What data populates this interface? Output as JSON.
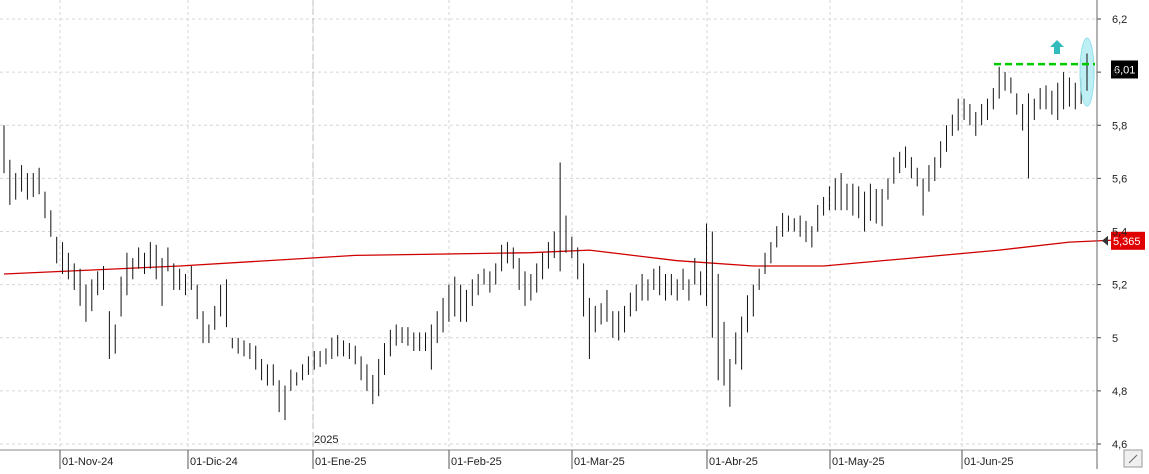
{
  "chart_data": {
    "type": "ohlc",
    "title": "",
    "xlabel": "",
    "ylabel": "",
    "ylim": [
      4.6,
      6.2
    ],
    "grid": true,
    "y_ticks": [
      "4,6",
      "4,8",
      "5",
      "5,2",
      "5,4",
      "5,6",
      "5,8",
      "6",
      "6,2"
    ],
    "y_tick_values": [
      4.6,
      4.8,
      5.0,
      5.2,
      5.4,
      5.6,
      5.8,
      6.0,
      6.2
    ],
    "x_ticks": [
      "01-Nov-24",
      "01-Dic-24",
      "01-Ene-25",
      "01-Feb-25",
      "01-Mar-25",
      "01-Abr-25",
      "01-May-25",
      "01-Jun-25"
    ],
    "year_marker": "2025",
    "colors": {
      "bars": "#111111",
      "moving_average": "#d00000",
      "resistance": "#00cc00",
      "arrow": "#33bbbb",
      "highlight": "#b8eef5",
      "price_label_bg": "#000000",
      "ma_label_bg": "#e00000"
    },
    "last_price_label": "6,01",
    "moving_average_label": "5,365",
    "resistance_level": 6.03,
    "price_bars": [
      {
        "h": 5.8,
        "l": 5.62
      },
      {
        "h": 5.67,
        "l": 5.5
      },
      {
        "h": 5.62,
        "l": 5.52
      },
      {
        "h": 5.65,
        "l": 5.55
      },
      {
        "h": 5.62,
        "l": 5.52
      },
      {
        "h": 5.62,
        "l": 5.53
      },
      {
        "h": 5.64,
        "l": 5.54
      },
      {
        "h": 5.55,
        "l": 5.45
      },
      {
        "h": 5.48,
        "l": 5.38
      },
      {
        "h": 5.38,
        "l": 5.28
      },
      {
        "h": 5.36,
        "l": 5.24
      },
      {
        "h": 5.32,
        "l": 5.22
      },
      {
        "h": 5.28,
        "l": 5.18
      },
      {
        "h": 5.26,
        "l": 5.12
      },
      {
        "h": 5.2,
        "l": 5.06
      },
      {
        "h": 5.22,
        "l": 5.1
      },
      {
        "h": 5.25,
        "l": 5.16
      },
      {
        "h": 5.27,
        "l": 5.18
      },
      {
        "h": 5.1,
        "l": 4.92
      },
      {
        "h": 5.05,
        "l": 4.94
      },
      {
        "h": 5.23,
        "l": 5.08
      },
      {
        "h": 5.32,
        "l": 5.16
      },
      {
        "h": 5.3,
        "l": 5.22
      },
      {
        "h": 5.34,
        "l": 5.26
      },
      {
        "h": 5.32,
        "l": 5.24
      },
      {
        "h": 5.36,
        "l": 5.26
      },
      {
        "h": 5.35,
        "l": 5.22
      },
      {
        "h": 5.3,
        "l": 5.12
      },
      {
        "h": 5.34,
        "l": 5.25
      },
      {
        "h": 5.28,
        "l": 5.18
      },
      {
        "h": 5.26,
        "l": 5.18
      },
      {
        "h": 5.24,
        "l": 5.16
      },
      {
        "h": 5.27,
        "l": 5.18
      },
      {
        "h": 5.2,
        "l": 5.07
      },
      {
        "h": 5.1,
        "l": 4.98
      },
      {
        "h": 5.05,
        "l": 4.98
      },
      {
        "h": 5.12,
        "l": 5.03
      },
      {
        "h": 5.2,
        "l": 5.08
      },
      {
        "h": 5.22,
        "l": 5.04
      },
      {
        "h": 5.0,
        "l": 4.96
      },
      {
        "h": 5.0,
        "l": 4.94
      },
      {
        "h": 4.99,
        "l": 4.93
      },
      {
        "h": 4.98,
        "l": 4.92
      },
      {
        "h": 4.97,
        "l": 4.88
      },
      {
        "h": 4.92,
        "l": 4.84
      },
      {
        "h": 4.9,
        "l": 4.82
      },
      {
        "h": 4.9,
        "l": 4.82
      },
      {
        "h": 4.84,
        "l": 4.72
      },
      {
        "h": 4.82,
        "l": 4.69
      },
      {
        "h": 4.88,
        "l": 4.8
      },
      {
        "h": 4.87,
        "l": 4.82
      },
      {
        "h": 4.9,
        "l": 4.84
      },
      {
        "h": 4.93,
        "l": 4.86
      },
      {
        "h": 4.95,
        "l": 4.88
      },
      {
        "h": 4.95,
        "l": 4.89
      },
      {
        "h": 4.96,
        "l": 4.9
      },
      {
        "h": 5.0,
        "l": 4.92
      },
      {
        "h": 5.01,
        "l": 4.93
      },
      {
        "h": 4.99,
        "l": 4.93
      },
      {
        "h": 4.98,
        "l": 4.92
      },
      {
        "h": 4.97,
        "l": 4.9
      },
      {
        "h": 4.93,
        "l": 4.84
      },
      {
        "h": 4.9,
        "l": 4.8
      },
      {
        "h": 4.86,
        "l": 4.75
      },
      {
        "h": 4.92,
        "l": 4.78
      },
      {
        "h": 4.98,
        "l": 4.86
      },
      {
        "h": 5.03,
        "l": 4.93
      },
      {
        "h": 5.05,
        "l": 4.97
      },
      {
        "h": 5.04,
        "l": 4.98
      },
      {
        "h": 5.04,
        "l": 4.97
      },
      {
        "h": 5.02,
        "l": 4.95
      },
      {
        "h": 5.02,
        "l": 4.95
      },
      {
        "h": 5.02,
        "l": 4.95
      },
      {
        "h": 5.05,
        "l": 4.88
      },
      {
        "h": 5.1,
        "l": 4.98
      },
      {
        "h": 5.15,
        "l": 5.02
      },
      {
        "h": 5.2,
        "l": 5.06
      },
      {
        "h": 5.23,
        "l": 5.08
      },
      {
        "h": 5.2,
        "l": 5.06
      },
      {
        "h": 5.18,
        "l": 5.06
      },
      {
        "h": 5.22,
        "l": 5.12
      },
      {
        "h": 5.24,
        "l": 5.16
      },
      {
        "h": 5.26,
        "l": 5.2
      },
      {
        "h": 5.25,
        "l": 5.17
      },
      {
        "h": 5.28,
        "l": 5.2
      },
      {
        "h": 5.35,
        "l": 5.25
      },
      {
        "h": 5.36,
        "l": 5.28
      },
      {
        "h": 5.34,
        "l": 5.26
      },
      {
        "h": 5.3,
        "l": 5.18
      },
      {
        "h": 5.25,
        "l": 5.12
      },
      {
        "h": 5.24,
        "l": 5.14
      },
      {
        "h": 5.28,
        "l": 5.17
      },
      {
        "h": 5.32,
        "l": 5.22
      },
      {
        "h": 5.36,
        "l": 5.26
      },
      {
        "h": 5.4,
        "l": 5.3
      },
      {
        "h": 5.66,
        "l": 5.25
      },
      {
        "h": 5.46,
        "l": 5.32
      },
      {
        "h": 5.38,
        "l": 5.3
      },
      {
        "h": 5.34,
        "l": 5.22
      },
      {
        "h": 5.28,
        "l": 5.08
      },
      {
        "h": 5.15,
        "l": 4.92
      },
      {
        "h": 5.12,
        "l": 5.02
      },
      {
        "h": 5.13,
        "l": 5.05
      },
      {
        "h": 5.18,
        "l": 5.06
      },
      {
        "h": 5.1,
        "l": 5.0
      },
      {
        "h": 5.1,
        "l": 4.99
      },
      {
        "h": 5.12,
        "l": 5.02
      },
      {
        "h": 5.17,
        "l": 5.08
      },
      {
        "h": 5.2,
        "l": 5.1
      },
      {
        "h": 5.24,
        "l": 5.14
      },
      {
        "h": 5.22,
        "l": 5.14
      },
      {
        "h": 5.26,
        "l": 5.18
      },
      {
        "h": 5.27,
        "l": 5.16
      },
      {
        "h": 5.24,
        "l": 5.14
      },
      {
        "h": 5.24,
        "l": 5.16
      },
      {
        "h": 5.22,
        "l": 5.14
      },
      {
        "h": 5.26,
        "l": 5.18
      },
      {
        "h": 5.22,
        "l": 5.14
      },
      {
        "h": 5.3,
        "l": 5.2
      },
      {
        "h": 5.25,
        "l": 5.16
      },
      {
        "h": 5.43,
        "l": 5.12
      },
      {
        "h": 5.4,
        "l": 5.0
      },
      {
        "h": 5.24,
        "l": 4.84
      },
      {
        "h": 5.06,
        "l": 4.82
      },
      {
        "h": 4.92,
        "l": 4.74
      },
      {
        "h": 5.02,
        "l": 4.9
      },
      {
        "h": 5.08,
        "l": 4.88
      },
      {
        "h": 5.16,
        "l": 5.02
      },
      {
        "h": 5.2,
        "l": 5.08
      },
      {
        "h": 5.26,
        "l": 5.18
      },
      {
        "h": 5.32,
        "l": 5.24
      },
      {
        "h": 5.36,
        "l": 5.28
      },
      {
        "h": 5.42,
        "l": 5.34
      },
      {
        "h": 5.47,
        "l": 5.38
      },
      {
        "h": 5.46,
        "l": 5.4
      },
      {
        "h": 5.45,
        "l": 5.4
      },
      {
        "h": 5.46,
        "l": 5.38
      },
      {
        "h": 5.44,
        "l": 5.36
      },
      {
        "h": 5.42,
        "l": 5.34
      },
      {
        "h": 5.5,
        "l": 5.4
      },
      {
        "h": 5.53,
        "l": 5.46
      },
      {
        "h": 5.57,
        "l": 5.48
      },
      {
        "h": 5.6,
        "l": 5.48
      },
      {
        "h": 5.62,
        "l": 5.48
      },
      {
        "h": 5.58,
        "l": 5.48
      },
      {
        "h": 5.58,
        "l": 5.46
      },
      {
        "h": 5.57,
        "l": 5.45
      },
      {
        "h": 5.55,
        "l": 5.4
      },
      {
        "h": 5.58,
        "l": 5.44
      },
      {
        "h": 5.56,
        "l": 5.43
      },
      {
        "h": 5.56,
        "l": 5.42
      },
      {
        "h": 5.6,
        "l": 5.52
      },
      {
        "h": 5.68,
        "l": 5.58
      },
      {
        "h": 5.7,
        "l": 5.62
      },
      {
        "h": 5.72,
        "l": 5.64
      },
      {
        "h": 5.68,
        "l": 5.6
      },
      {
        "h": 5.64,
        "l": 5.57
      },
      {
        "h": 5.6,
        "l": 5.46
      },
      {
        "h": 5.65,
        "l": 5.55
      },
      {
        "h": 5.68,
        "l": 5.59
      },
      {
        "h": 5.74,
        "l": 5.64
      },
      {
        "h": 5.8,
        "l": 5.7
      },
      {
        "h": 5.84,
        "l": 5.76
      },
      {
        "h": 5.9,
        "l": 5.78
      },
      {
        "h": 5.9,
        "l": 5.82
      },
      {
        "h": 5.88,
        "l": 5.8
      },
      {
        "h": 5.85,
        "l": 5.76
      },
      {
        "h": 5.88,
        "l": 5.8
      },
      {
        "h": 5.9,
        "l": 5.82
      },
      {
        "h": 5.94,
        "l": 5.86
      },
      {
        "h": 6.02,
        "l": 5.9
      },
      {
        "h": 6.0,
        "l": 5.93
      },
      {
        "h": 5.98,
        "l": 5.92
      },
      {
        "h": 5.92,
        "l": 5.84
      },
      {
        "h": 5.88,
        "l": 5.78
      },
      {
        "h": 5.92,
        "l": 5.6
      },
      {
        "h": 5.9,
        "l": 5.82
      },
      {
        "h": 5.94,
        "l": 5.86
      },
      {
        "h": 5.95,
        "l": 5.86
      },
      {
        "h": 5.93,
        "l": 5.84
      },
      {
        "h": 5.96,
        "l": 5.82
      },
      {
        "h": 6.0,
        "l": 5.86
      },
      {
        "h": 5.98,
        "l": 5.87
      },
      {
        "h": 5.96,
        "l": 5.86
      },
      {
        "h": 5.98,
        "l": 5.88
      },
      {
        "h": 6.07,
        "l": 5.93
      }
    ],
    "moving_average": [
      {
        "i": 0,
        "y": 5.24
      },
      {
        "i": 30,
        "y": 5.27
      },
      {
        "i": 60,
        "y": 5.31
      },
      {
        "i": 90,
        "y": 5.32
      },
      {
        "i": 100,
        "y": 5.33
      },
      {
        "i": 115,
        "y": 5.29
      },
      {
        "i": 128,
        "y": 5.27
      },
      {
        "i": 140,
        "y": 5.27
      },
      {
        "i": 155,
        "y": 5.3
      },
      {
        "i": 170,
        "y": 5.33
      },
      {
        "i": 182,
        "y": 5.36
      },
      {
        "i": 192,
        "y": 5.37
      }
    ]
  }
}
